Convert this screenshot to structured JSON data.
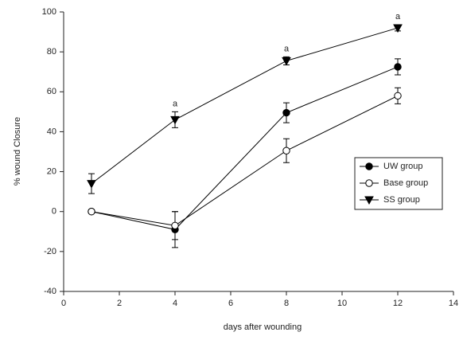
{
  "chart_data": {
    "type": "line",
    "xlabel": "days after wounding",
    "ylabel": "% wound Closure",
    "x": [
      1,
      4,
      8,
      12
    ],
    "xlim": [
      0,
      14
    ],
    "xticks": [
      0,
      2,
      4,
      6,
      8,
      10,
      12,
      14
    ],
    "ylim": [
      -40,
      100
    ],
    "yticks": [
      -40,
      -20,
      0,
      20,
      40,
      60,
      80,
      100
    ],
    "legend": "right",
    "series": [
      {
        "name": "UW group",
        "color": "#000000",
        "marker": "filled-circle",
        "values": [
          0,
          -9,
          49.5,
          72.5
        ],
        "errors": [
          0.5,
          9,
          5,
          4
        ]
      },
      {
        "name": "Base group",
        "color": "#000000",
        "marker": "open-circle",
        "values": [
          0,
          -7,
          30.5,
          58
        ],
        "errors": [
          0.5,
          7,
          6,
          4
        ]
      },
      {
        "name": "SS group",
        "color": "#000000",
        "marker": "filled-triangle-down",
        "values": [
          14,
          46,
          75.5,
          92
        ],
        "errors": [
          5,
          4,
          2,
          1.5
        ]
      }
    ],
    "annotations": [
      {
        "text": "a",
        "x": 4
      },
      {
        "text": "a",
        "x": 8
      },
      {
        "text": "a",
        "x": 12
      }
    ]
  }
}
